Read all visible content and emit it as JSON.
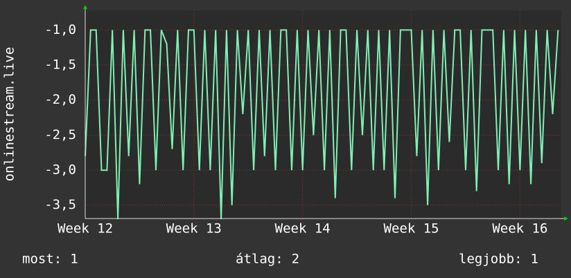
{
  "chart_data": {
    "type": "line",
    "ylabel": "onlinestream.live",
    "xlim": [
      12,
      16.38
    ],
    "xticks": [
      {
        "value": 12,
        "label": "Week 12"
      },
      {
        "value": 13,
        "label": "Week 13"
      },
      {
        "value": 14,
        "label": "Week 14"
      },
      {
        "value": 15,
        "label": "Week 15"
      },
      {
        "value": 16,
        "label": "Week 16"
      }
    ],
    "ylim": [
      -3.69,
      -0.72
    ],
    "yticks": [
      {
        "value": -1,
        "label": "-1,0"
      },
      {
        "value": -1.5,
        "label": "-1,5"
      },
      {
        "value": -2,
        "label": "-2,0"
      },
      {
        "value": -2.5,
        "label": "-2,5"
      },
      {
        "value": -3,
        "label": "-3,0"
      },
      {
        "value": -3.5,
        "label": "-3,5"
      }
    ],
    "grid": true,
    "series": [
      {
        "color": "#7ff0b4",
        "x": [
          12,
          12.05,
          12.1,
          12.15,
          12.2,
          12.25,
          12.3,
          12.35,
          12.4,
          12.45,
          12.5,
          12.55,
          12.6,
          12.65,
          12.7,
          12.75,
          12.8,
          12.85,
          12.9,
          12.95,
          13,
          13.05,
          13.1,
          13.15,
          13.2,
          13.25,
          13.3,
          13.35,
          13.4,
          13.45,
          13.5,
          13.55,
          13.6,
          13.65,
          13.7,
          13.75,
          13.8,
          13.85,
          13.9,
          13.95,
          14,
          14.05,
          14.1,
          14.15,
          14.2,
          14.25,
          14.3,
          14.35,
          14.4,
          14.45,
          14.5,
          14.55,
          14.6,
          14.65,
          14.7,
          14.75,
          14.8,
          14.85,
          14.9,
          14.95,
          15,
          15.05,
          15.1,
          15.15,
          15.2,
          15.25,
          15.3,
          15.35,
          15.4,
          15.45,
          15.5,
          15.55,
          15.6,
          15.65,
          15.7,
          15.75,
          15.8,
          15.85,
          15.9,
          15.95,
          16,
          16.05,
          16.1,
          16.15,
          16.2,
          16.25,
          16.3,
          16.35
        ],
        "values": [
          -2.8,
          -1,
          -1,
          -3,
          -3,
          -1,
          -3.7,
          -1,
          -2.8,
          -1,
          -3.2,
          -1,
          -1,
          -3.0,
          -1,
          -1.2,
          -2.7,
          -1,
          -3,
          -1,
          -1,
          -3,
          -1,
          -3,
          -1,
          -3.7,
          -1,
          -3.5,
          -1,
          -2.2,
          -1,
          -3.0,
          -1,
          -2.8,
          -1,
          -3,
          -1,
          -1,
          -3,
          -1,
          -3,
          -1,
          -2.5,
          -1,
          -3,
          -1,
          -3.4,
          -1,
          -1,
          -3,
          -1,
          -2.5,
          -1,
          -3,
          -1,
          -3.0,
          -1,
          -3.4,
          -1,
          -1,
          -1,
          -2.8,
          -1,
          -3.5,
          -1,
          -3,
          -1,
          -2.6,
          -1,
          -1,
          -3,
          -1,
          -3.3,
          -1,
          -1,
          -1,
          -3,
          -1,
          -3.2,
          -1,
          -3,
          -1,
          -3.2,
          -1,
          -2.9,
          -1,
          -2.2,
          -1
        ]
      }
    ],
    "stats": [
      {
        "label": "most:",
        "value": 1
      },
      {
        "label": "átlag:",
        "value": 2
      },
      {
        "label": "legjobb:",
        "value": 1
      }
    ]
  }
}
